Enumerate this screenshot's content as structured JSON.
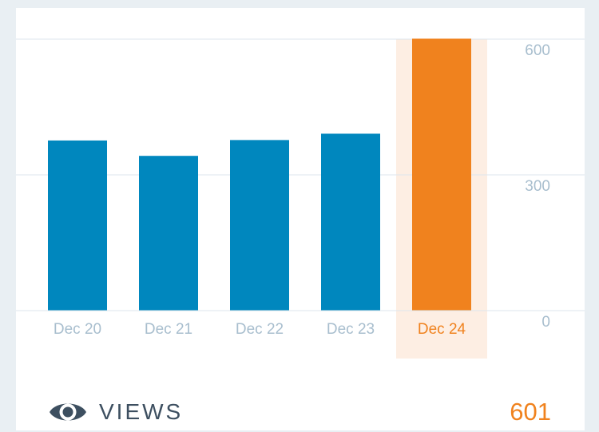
{
  "colors": {
    "bar": "#0087be",
    "highlight_bar": "#f0821e",
    "highlight_band": "#fdeee3",
    "grid": "#dde6ec",
    "axis_text": "#a8bece",
    "highlight_text": "#f0821e",
    "label_text": "#3d4f60"
  },
  "summary": {
    "icon": "eye-icon",
    "label": "VIEWS",
    "value": "601"
  },
  "chart_data": {
    "type": "bar",
    "categories": [
      "Dec 20",
      "Dec 21",
      "Dec 22",
      "Dec 23",
      "Dec 24"
    ],
    "values": [
      376,
      342,
      377,
      391,
      601
    ],
    "highlight_index": 4,
    "y_ticks": [
      "600",
      "300",
      "0"
    ],
    "ylim": [
      0,
      600
    ],
    "grid": true,
    "y_axis_side": "right"
  }
}
